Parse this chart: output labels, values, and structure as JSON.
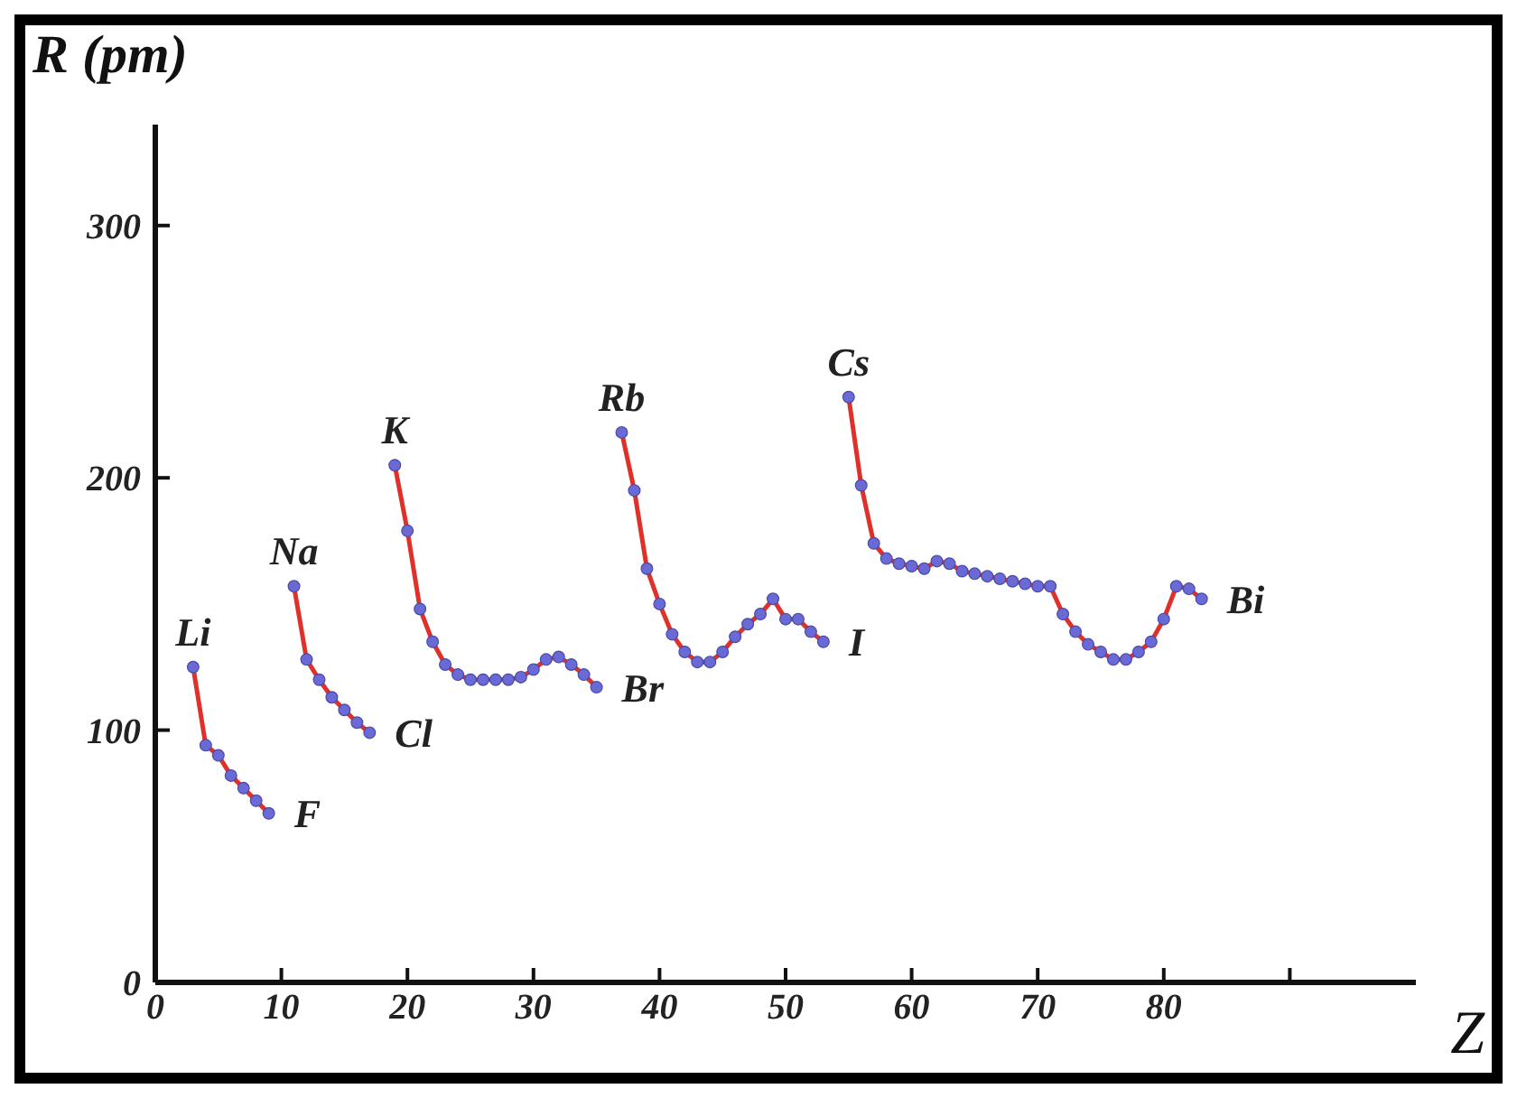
{
  "chart_data": {
    "type": "line",
    "ylabel": "R (pm)",
    "xlabel": "Z",
    "xlim": [
      0,
      100
    ],
    "ylim": [
      0,
      340
    ],
    "xticks": [
      0,
      10,
      20,
      30,
      40,
      50,
      60,
      70,
      80,
      {
        "value": 90,
        "label": null
      }
    ],
    "yticks": [
      0,
      100,
      200,
      300
    ],
    "grid": false,
    "marker": "circle",
    "line_style": "solid",
    "series": [
      {
        "color": "#e0302a",
        "x": [
          3,
          4,
          5,
          6,
          7,
          8,
          9
        ],
        "values": [
          125,
          94,
          90,
          82,
          77,
          72,
          67
        ]
      },
      {
        "color": "#e0302a",
        "x": [
          11,
          12,
          13,
          14,
          15,
          16,
          17
        ],
        "values": [
          157,
          128,
          120,
          113,
          108,
          103,
          99
        ]
      },
      {
        "color": "#e0302a",
        "x": [
          19,
          20,
          21,
          22,
          23,
          24,
          25,
          26,
          27,
          28,
          29,
          30,
          31,
          32,
          33,
          34,
          35
        ],
        "values": [
          205,
          179,
          148,
          135,
          126,
          122,
          120,
          120,
          120,
          120,
          121,
          124,
          128,
          129,
          126,
          122,
          117
        ]
      },
      {
        "color": "#e0302a",
        "x": [
          37,
          38,
          39,
          40,
          41,
          42,
          43,
          44,
          45,
          46,
          47,
          48,
          49,
          50,
          51,
          52,
          53
        ],
        "values": [
          218,
          195,
          164,
          150,
          138,
          131,
          127,
          127,
          131,
          137,
          142,
          146,
          152,
          144,
          144,
          139,
          135
        ]
      },
      {
        "color": "#e0302a",
        "x": [
          55,
          56,
          57,
          58,
          59,
          60,
          61,
          62,
          63,
          64,
          65,
          66,
          67,
          68,
          69,
          70,
          71,
          72,
          73,
          74,
          75,
          76,
          77,
          78,
          79,
          80,
          81,
          82,
          83
        ],
        "values": [
          232,
          197,
          174,
          168,
          166,
          165,
          164,
          167,
          166,
          163,
          162,
          161,
          160,
          159,
          158,
          157,
          157,
          146,
          139,
          134,
          131,
          128,
          128,
          131,
          135,
          144,
          157,
          156,
          152
        ]
      }
    ],
    "annotations": [
      {
        "text": "Li",
        "x": 3,
        "y": 125
      },
      {
        "text": "F",
        "x": 9,
        "y": 67
      },
      {
        "text": "Na",
        "x": 11,
        "y": 157
      },
      {
        "text": "Cl",
        "x": 17,
        "y": 99
      },
      {
        "text": "K",
        "x": 19,
        "y": 205
      },
      {
        "text": "Br",
        "x": 35,
        "y": 117
      },
      {
        "text": "Rb",
        "x": 37,
        "y": 218
      },
      {
        "text": "I",
        "x": 53,
        "y": 135
      },
      {
        "text": "Cs",
        "x": 55,
        "y": 232
      },
      {
        "text": "Bi",
        "x": 83,
        "y": 152
      }
    ]
  }
}
